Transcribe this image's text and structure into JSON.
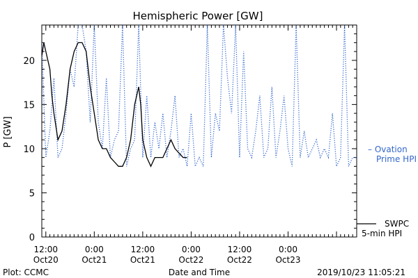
{
  "chart_data": {
    "type": "line",
    "title": "Hemispheric Power [GW]",
    "ylabel": "P [GW]",
    "xlabel": "Date and Time",
    "ylim": [
      0,
      24
    ],
    "yticks": [
      0,
      5,
      10,
      15,
      20
    ],
    "xlim_hours_note": "x axis runs from Oct20 ~11:00 to Oct23 ~17:00 UTC",
    "xticks": [
      {
        "time": "12:00",
        "date": "Oct20"
      },
      {
        "time": "0:00",
        "date": "Oct21"
      },
      {
        "time": "12:00",
        "date": "Oct21"
      },
      {
        "time": "0:00",
        "date": "Oct22"
      },
      {
        "time": "12:00",
        "date": "Oct22"
      },
      {
        "time": "0:00",
        "date": "Oct23"
      }
    ],
    "series": [
      {
        "name": "SWPC 5-min HPI",
        "style": "solid",
        "color": "#000000",
        "x": [
          "2019-10-20 11:00",
          "2019-10-20 11:30",
          "2019-10-20 12:00",
          "2019-10-20 12:30",
          "2019-10-20 13:00",
          "2019-10-20 13:30",
          "2019-10-20 14:00",
          "2019-10-20 15:00",
          "2019-10-20 16:00",
          "2019-10-20 17:00",
          "2019-10-20 18:00",
          "2019-10-20 19:00",
          "2019-10-20 20:00",
          "2019-10-20 21:00",
          "2019-10-20 22:00",
          "2019-10-20 22:30",
          "2019-10-20 23:00",
          "2019-10-21 00:00",
          "2019-10-21 01:00",
          "2019-10-21 02:00",
          "2019-10-21 03:00",
          "2019-10-21 04:00",
          "2019-10-21 05:00",
          "2019-10-21 06:00",
          "2019-10-21 07:00",
          "2019-10-21 08:00",
          "2019-10-21 09:00",
          "2019-10-21 10:00",
          "2019-10-21 11:00",
          "2019-10-21 11:30",
          "2019-10-21 12:00",
          "2019-10-21 13:00",
          "2019-10-21 14:00",
          "2019-10-21 15:00",
          "2019-10-21 16:00",
          "2019-10-21 17:00",
          "2019-10-21 18:00",
          "2019-10-21 19:00",
          "2019-10-21 20:00",
          "2019-10-21 21:00",
          "2019-10-21 22:00",
          "2019-10-21 23:00"
        ],
        "y": [
          20.5,
          22,
          21,
          20,
          19,
          16,
          14,
          11,
          12,
          15,
          19,
          21,
          22,
          22,
          21,
          19,
          17,
          14,
          11,
          10,
          10,
          9,
          8.5,
          8,
          8,
          9,
          11,
          15,
          17,
          15,
          11,
          9,
          8,
          9,
          9,
          9,
          10,
          11,
          10,
          9.5,
          9,
          9
        ]
      },
      {
        "name": "Ovation Prime HPI",
        "style": "dotted",
        "color": "#3366cc",
        "x": [
          "2019-10-20 11:00",
          "2019-10-20 12:00",
          "2019-10-20 13:00",
          "2019-10-20 14:00",
          "2019-10-20 15:00",
          "2019-10-20 16:00",
          "2019-10-20 17:00",
          "2019-10-20 18:00",
          "2019-10-20 19:00",
          "2019-10-20 20:00",
          "2019-10-20 21:00",
          "2019-10-20 22:00",
          "2019-10-20 23:00",
          "2019-10-21 00:00",
          "2019-10-21 01:00",
          "2019-10-21 02:00",
          "2019-10-21 03:00",
          "2019-10-21 04:00",
          "2019-10-21 05:00",
          "2019-10-21 06:00",
          "2019-10-21 07:00",
          "2019-10-21 08:00",
          "2019-10-21 09:00",
          "2019-10-21 10:00",
          "2019-10-21 11:00",
          "2019-10-21 12:00",
          "2019-10-21 13:00",
          "2019-10-21 14:00",
          "2019-10-21 15:00",
          "2019-10-21 16:00",
          "2019-10-21 17:00",
          "2019-10-21 18:00",
          "2019-10-21 19:00",
          "2019-10-21 20:00",
          "2019-10-21 21:00",
          "2019-10-21 22:00",
          "2019-10-21 23:00",
          "2019-10-22 00:00",
          "2019-10-22 01:00",
          "2019-10-22 02:00",
          "2019-10-22 03:00",
          "2019-10-22 04:00",
          "2019-10-22 05:00",
          "2019-10-22 06:00",
          "2019-10-22 07:00",
          "2019-10-22 08:00",
          "2019-10-22 09:00",
          "2019-10-22 10:00",
          "2019-10-22 11:00",
          "2019-10-22 12:00",
          "2019-10-22 13:00",
          "2019-10-22 14:00",
          "2019-10-22 15:00",
          "2019-10-22 16:00",
          "2019-10-22 17:00",
          "2019-10-22 18:00",
          "2019-10-22 19:00",
          "2019-10-22 20:00",
          "2019-10-22 21:00",
          "2019-10-22 22:00",
          "2019-10-22 23:00",
          "2019-10-23 00:00",
          "2019-10-23 01:00",
          "2019-10-23 02:00",
          "2019-10-23 03:00",
          "2019-10-23 04:00",
          "2019-10-23 05:00",
          "2019-10-23 06:00",
          "2019-10-23 07:00",
          "2019-10-23 08:00",
          "2019-10-23 09:00",
          "2019-10-23 10:00",
          "2019-10-23 11:00",
          "2019-10-23 12:00",
          "2019-10-23 13:00",
          "2019-10-23 14:00",
          "2019-10-23 15:00",
          "2019-10-23 16:00",
          "2019-10-23 17:00"
        ],
        "y": [
          22,
          9,
          12,
          18,
          9,
          10,
          14,
          19,
          17,
          24,
          24,
          21,
          13,
          24,
          13,
          10,
          18,
          9,
          11,
          12,
          24,
          8,
          10,
          11,
          24,
          9,
          16,
          9,
          13,
          10,
          14,
          9,
          12,
          16,
          9,
          10,
          8,
          14,
          8,
          9,
          8,
          24,
          9,
          14,
          12,
          24,
          18,
          14,
          24,
          9,
          21,
          10,
          9,
          12,
          16,
          9,
          10,
          17,
          9,
          12,
          16,
          10,
          8,
          24,
          9,
          12,
          9,
          10,
          11,
          9,
          10,
          9,
          14,
          8,
          9,
          24,
          8,
          9,
          9
        ]
      }
    ],
    "legend": [
      {
        "label_line1": "– Ovation",
        "label_line2": "Prime HPI",
        "color": "#3366cc",
        "placement": "right"
      },
      {
        "label_line1": "SWPC",
        "label_line2": "5-min HPI",
        "color": "#000000",
        "placement": "bottom-right"
      }
    ],
    "footer": {
      "left": "Plot: CCMC",
      "right": "2019/10/23 11:05:21"
    }
  }
}
